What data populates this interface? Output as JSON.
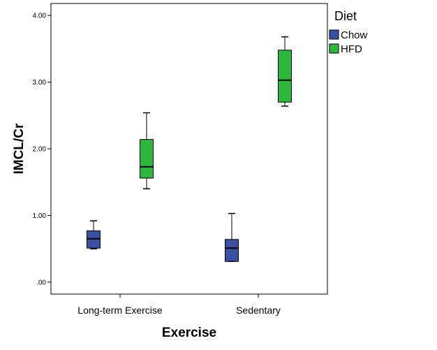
{
  "chart_data": {
    "type": "boxplot",
    "xlabel": "Exercise",
    "ylabel": "IMCL/Cr",
    "ylim": [
      -0.18,
      4.18
    ],
    "yticks": [
      0,
      1,
      2,
      3,
      4
    ],
    "ytick_labels": [
      ".00",
      "1.00",
      "2.00",
      "3.00",
      "4.00"
    ],
    "categories": [
      "Long-term Exercise",
      "Sedentary"
    ],
    "legend": {
      "title": "Diet",
      "placement": "right"
    },
    "series": [
      {
        "name": "Chow",
        "color": "#3a50a0",
        "boxes": [
          {
            "category": "Long-term Exercise",
            "min": 0.5,
            "q1": 0.51,
            "median": 0.65,
            "q3": 0.77,
            "max": 0.92
          },
          {
            "category": "Sedentary",
            "min": 0.31,
            "q1": 0.31,
            "median": 0.51,
            "q3": 0.64,
            "max": 1.03
          }
        ]
      },
      {
        "name": "HFD",
        "color": "#2db83d",
        "boxes": [
          {
            "category": "Long-term Exercise",
            "min": 1.4,
            "q1": 1.56,
            "median": 1.73,
            "q3": 2.14,
            "max": 2.54
          },
          {
            "category": "Sedentary",
            "min": 2.64,
            "q1": 2.7,
            "median": 3.03,
            "q3": 3.48,
            "max": 3.68
          }
        ]
      }
    ]
  }
}
